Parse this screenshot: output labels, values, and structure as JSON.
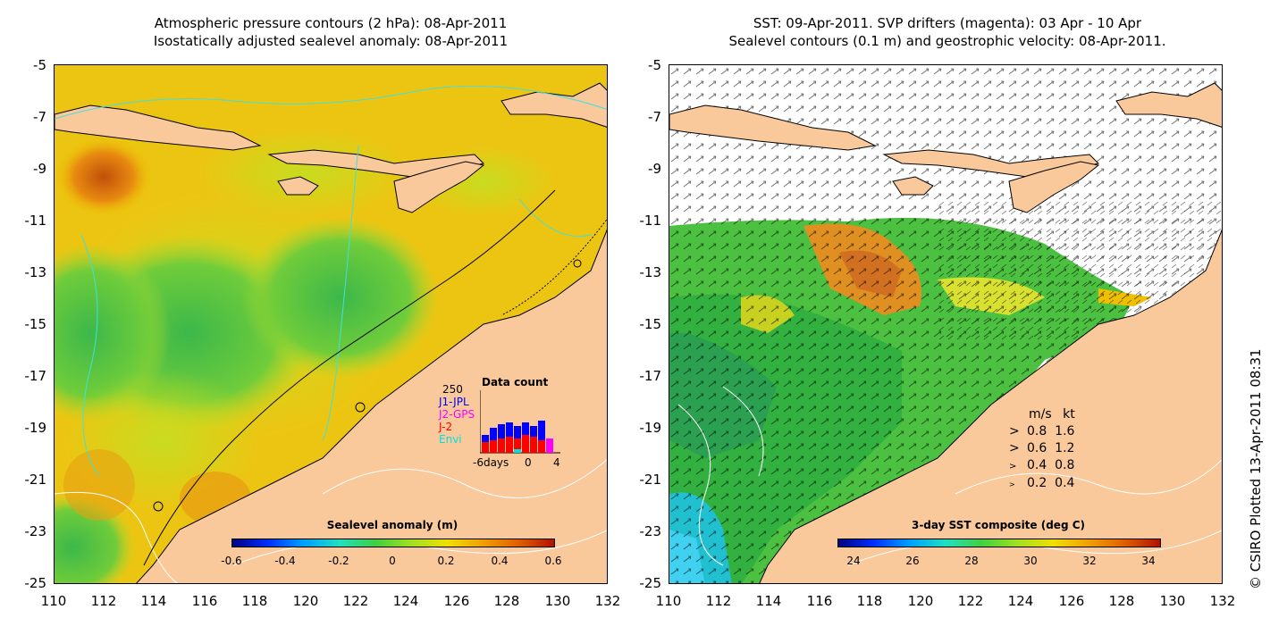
{
  "left_panel": {
    "title_line1": "Atmospheric pressure contours (2 hPa): 08-Apr-2011",
    "title_line2": "Isostatically adjusted sealevel anomaly: 08-Apr-2011",
    "colorbar_title": "Sealevel anomaly (m)",
    "colorbar_ticks": [
      "-0.6",
      "-0.4",
      "-0.2",
      "0",
      "0.2",
      "0.4",
      "0.6"
    ],
    "data_count": {
      "title": "Data count",
      "max_label": "250",
      "series": [
        "J1-JPL",
        "J2-GPS",
        "J-2",
        "Envi"
      ],
      "series_colors": [
        "#0000ff",
        "#ff00ff",
        "#ff0000",
        "#00e0e0"
      ],
      "x_labels": [
        "-6days",
        "0",
        "4"
      ]
    }
  },
  "right_panel": {
    "title_line1": "SST: 09-Apr-2011. SVP drifters (magenta): 03 Apr - 10 Apr",
    "title_line2": "Sealevel contours (0.1 m) and geostrophic velocity: 08-Apr-2011.",
    "colorbar_title": "3-day SST composite (deg C)",
    "colorbar_ticks": [
      "24",
      "26",
      "28",
      "30",
      "32",
      "34"
    ],
    "velocity_legend": {
      "header_ms": "m/s",
      "header_kt": "kt",
      "rows": [
        {
          "ms": "0.8",
          "kt": "1.6"
        },
        {
          "ms": "0.6",
          "kt": "1.2"
        },
        {
          "ms": "0.4",
          "kt": "0.8"
        },
        {
          "ms": "0.2",
          "kt": "0.4"
        }
      ]
    }
  },
  "axes": {
    "y_labels": [
      "-5",
      "-7",
      "-9",
      "-11",
      "-13",
      "-15",
      "-17",
      "-19",
      "-21",
      "-23",
      "-25"
    ],
    "x_labels": [
      "110",
      "112",
      "114",
      "116",
      "118",
      "120",
      "122",
      "124",
      "126",
      "128",
      "130",
      "132"
    ]
  },
  "credit": "© CSIRO Plotted 13-Apr-2011 08:31"
}
